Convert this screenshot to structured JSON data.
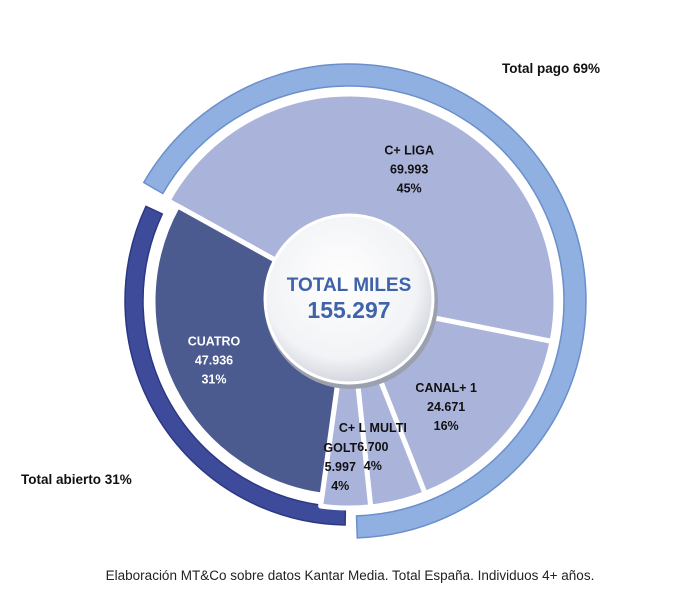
{
  "chart_data": {
    "type": "pie",
    "center_label": {
      "title": "TOTAL MILES",
      "value": "155.297"
    },
    "slices": [
      {
        "name": "C+ LIGA",
        "value_text": "69.993",
        "value": 69993,
        "percent_text": "45%",
        "percent": 45,
        "color": "#aab4db"
      },
      {
        "name": "CANAL+ 1",
        "value_text": "24.671",
        "value": 24671,
        "percent_text": "16%",
        "percent": 16,
        "color": "#aab4db"
      },
      {
        "name": "C+ L MULTI",
        "value_text": "6.700",
        "value": 6700,
        "percent_text": "4%",
        "percent": 4,
        "color": "#aab4db"
      },
      {
        "name": "GOLT",
        "value_text": "5.997",
        "value": 5997,
        "percent_text": "4%",
        "percent": 4,
        "color": "#aab4db"
      },
      {
        "name": "CUATRO",
        "value_text": "47.936",
        "value": 47936,
        "percent_text": "31%",
        "percent": 31,
        "color": "#4b5a8f"
      }
    ],
    "outer_ring": [
      {
        "label": "Total pago 69%",
        "percent": 69,
        "color": "#8fb0e0"
      },
      {
        "label": "Total abierto 31%",
        "percent": 31,
        "color": "#3d4b9a"
      }
    ]
  },
  "caption": "Elaboración MT&Co sobre datos Kantar Media. Total España. Individuos 4+ años."
}
